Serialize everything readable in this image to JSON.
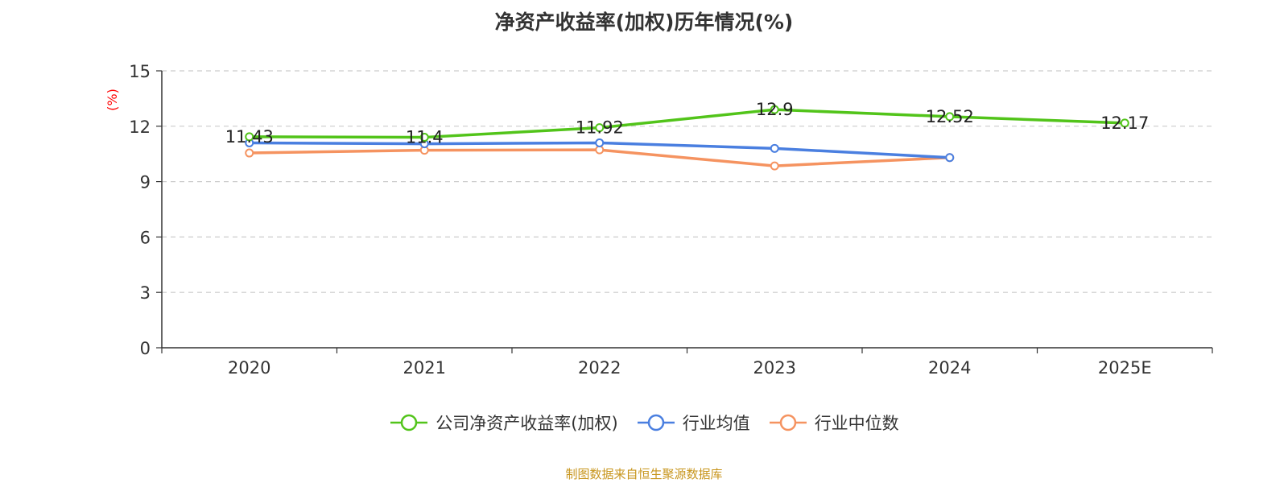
{
  "chart_data": {
    "type": "line",
    "title": "净资产收益率(加权)历年情况(%)",
    "ylabel": "(%)",
    "categories": [
      "2020",
      "2021",
      "2022",
      "2023",
      "2024",
      "2025E"
    ],
    "ylim": [
      0,
      15
    ],
    "yticks": [
      "0",
      "3",
      "6",
      "9",
      "12",
      "15"
    ],
    "grid": true,
    "legend_position": "bottom",
    "series": [
      {
        "name": "公司净资产收益率(加权)",
        "color": "#52c41a",
        "values": [
          11.43,
          11.4,
          11.92,
          12.9,
          12.52,
          12.17
        ],
        "labels": [
          "11.43",
          "11.4",
          "11.92",
          "12.9",
          "12.52",
          "12.17"
        ]
      },
      {
        "name": "行业均值",
        "color": "#4a7fe0",
        "values": [
          11.1,
          11.05,
          11.1,
          10.8,
          10.3,
          null
        ]
      },
      {
        "name": "行业中位数",
        "color": "#f59360",
        "values": [
          10.55,
          10.7,
          10.72,
          9.85,
          10.3,
          null
        ]
      }
    ],
    "source": "制图数据来自恒生聚源数据库",
    "source_color": "#c8961e",
    "ylabel_color": "#ff0000"
  }
}
